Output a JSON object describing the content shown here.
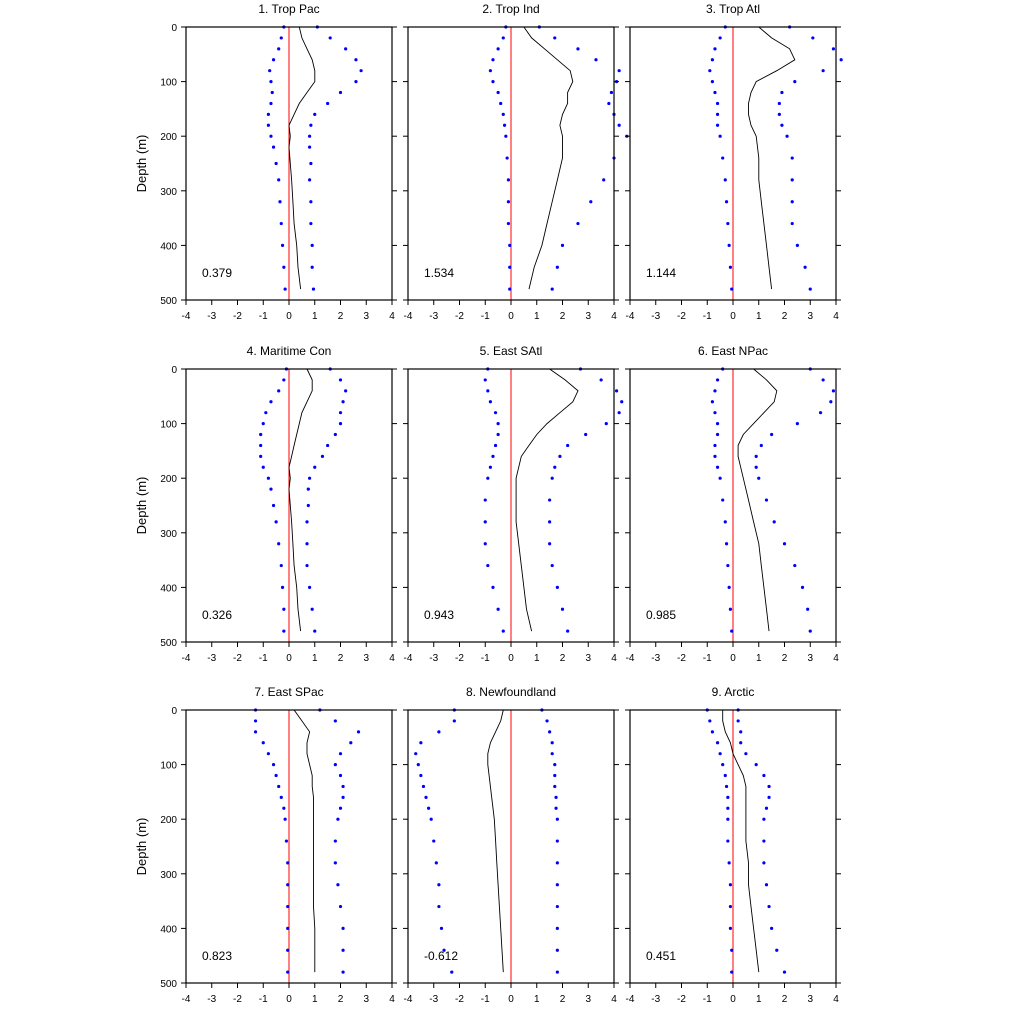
{
  "figure": {
    "ylabel": "Depth (m)",
    "colors": {
      "mean": "#000000",
      "bounds": "#0000ff",
      "zero": "#ff0000",
      "axes": "#000000"
    }
  },
  "chart_data": [
    {
      "type": "line",
      "title": "1. Trop Pac",
      "value_label": "0.379",
      "xlim": [
        -4,
        4
      ],
      "ylim": [
        0,
        500
      ],
      "y_inverted": true,
      "xticks": [
        "-4",
        "-3",
        "-2",
        "-1",
        "0",
        "1",
        "2",
        "3",
        "4"
      ],
      "yticks": [
        "0",
        "100",
        "200",
        "300",
        "400",
        "500"
      ],
      "depth": [
        0,
        20,
        40,
        60,
        80,
        100,
        120,
        140,
        160,
        180,
        200,
        220,
        250,
        280,
        320,
        360,
        400,
        440,
        480
      ],
      "series": [
        {
          "role": "mean",
          "values": [
            0.4,
            0.5,
            0.7,
            0.9,
            1.0,
            1.0,
            0.7,
            0.4,
            0.2,
            0.0,
            0.05,
            0.0,
            0.05,
            0.1,
            0.15,
            0.2,
            0.3,
            0.35,
            0.45
          ]
        },
        {
          "role": "upper",
          "values": [
            1.1,
            1.6,
            2.2,
            2.6,
            2.8,
            2.6,
            2.0,
            1.5,
            1.0,
            0.85,
            0.8,
            0.8,
            0.85,
            0.8,
            0.85,
            0.85,
            0.9,
            0.9,
            0.95
          ]
        },
        {
          "role": "lower",
          "values": [
            -0.2,
            -0.3,
            -0.4,
            -0.6,
            -0.75,
            -0.7,
            -0.65,
            -0.7,
            -0.8,
            -0.8,
            -0.7,
            -0.6,
            -0.5,
            -0.4,
            -0.35,
            -0.3,
            -0.25,
            -0.2,
            -0.15
          ]
        }
      ]
    },
    {
      "type": "line",
      "title": "2. Trop Ind",
      "value_label": "1.534",
      "xlim": [
        -4,
        4
      ],
      "ylim": [
        0,
        500
      ],
      "y_inverted": true,
      "xticks": [
        "-4",
        "-3",
        "-2",
        "-1",
        "0",
        "1",
        "2",
        "3",
        "4"
      ],
      "yticks": [
        "0",
        "100",
        "200",
        "300",
        "400",
        "500"
      ],
      "depth": [
        0,
        20,
        40,
        60,
        80,
        100,
        120,
        140,
        160,
        180,
        200,
        240,
        280,
        320,
        360,
        400,
        440,
        480
      ],
      "series": [
        {
          "role": "mean",
          "values": [
            0.5,
            0.8,
            1.3,
            1.8,
            2.3,
            2.4,
            2.2,
            2.2,
            2.0,
            1.9,
            2.0,
            2.0,
            1.8,
            1.6,
            1.4,
            1.2,
            0.9,
            0.7
          ]
        },
        {
          "role": "upper",
          "values": [
            1.1,
            1.7,
            2.6,
            3.3,
            4.2,
            4.1,
            3.9,
            3.8,
            4.0,
            4.2,
            4.5,
            4.0,
            3.6,
            3.1,
            2.6,
            2.0,
            1.8,
            1.6
          ]
        },
        {
          "role": "lower",
          "values": [
            -0.2,
            -0.3,
            -0.5,
            -0.7,
            -0.8,
            -0.7,
            -0.5,
            -0.4,
            -0.3,
            -0.25,
            -0.2,
            -0.15,
            -0.1,
            -0.1,
            -0.1,
            -0.05,
            -0.05,
            -0.05
          ]
        }
      ]
    },
    {
      "type": "line",
      "title": "3. Trop Atl",
      "value_label": "1.144",
      "xlim": [
        -4,
        4
      ],
      "ylim": [
        0,
        500
      ],
      "y_inverted": true,
      "xticks": [
        "-4",
        "-3",
        "-2",
        "-1",
        "0",
        "1",
        "2",
        "3",
        "4"
      ],
      "yticks": [
        "0",
        "100",
        "200",
        "300",
        "400",
        "500"
      ],
      "depth": [
        0,
        20,
        40,
        60,
        80,
        100,
        120,
        140,
        160,
        180,
        200,
        240,
        280,
        320,
        360,
        400,
        440,
        480
      ],
      "series": [
        {
          "role": "mean",
          "values": [
            1.0,
            1.5,
            2.2,
            2.4,
            1.7,
            0.9,
            0.7,
            0.6,
            0.6,
            0.7,
            0.9,
            1.0,
            1.0,
            1.1,
            1.2,
            1.3,
            1.4,
            1.5
          ]
        },
        {
          "role": "upper",
          "values": [
            2.2,
            3.1,
            3.9,
            4.2,
            3.5,
            2.4,
            1.9,
            1.8,
            1.8,
            1.9,
            2.1,
            2.3,
            2.3,
            2.3,
            2.3,
            2.5,
            2.8,
            3.0
          ]
        },
        {
          "role": "lower",
          "values": [
            -0.3,
            -0.5,
            -0.7,
            -0.8,
            -0.9,
            -0.8,
            -0.7,
            -0.6,
            -0.6,
            -0.6,
            -0.5,
            -0.4,
            -0.3,
            -0.25,
            -0.2,
            -0.15,
            -0.1,
            -0.05
          ]
        }
      ]
    },
    {
      "type": "line",
      "title": "4. Maritime Con",
      "value_label": "0.326",
      "xlim": [
        -4,
        4
      ],
      "ylim": [
        0,
        500
      ],
      "y_inverted": true,
      "xticks": [
        "-4",
        "-3",
        "-2",
        "-1",
        "0",
        "1",
        "2",
        "3",
        "4"
      ],
      "yticks": [
        "0",
        "100",
        "200",
        "300",
        "400",
        "500"
      ],
      "depth": [
        0,
        20,
        40,
        60,
        80,
        100,
        120,
        140,
        160,
        180,
        200,
        220,
        250,
        280,
        320,
        360,
        400,
        440,
        480
      ],
      "series": [
        {
          "role": "mean",
          "values": [
            0.7,
            0.9,
            0.9,
            0.7,
            0.5,
            0.4,
            0.3,
            0.2,
            0.1,
            0.0,
            0.05,
            0.0,
            0.05,
            0.1,
            0.15,
            0.2,
            0.3,
            0.35,
            0.45
          ]
        },
        {
          "role": "upper",
          "values": [
            1.6,
            2.0,
            2.2,
            2.1,
            2.0,
            2.0,
            1.8,
            1.5,
            1.3,
            1.0,
            0.8,
            0.75,
            0.75,
            0.7,
            0.7,
            0.7,
            0.8,
            0.9,
            1.0
          ]
        },
        {
          "role": "lower",
          "values": [
            -0.1,
            -0.2,
            -0.4,
            -0.7,
            -0.9,
            -1.0,
            -1.1,
            -1.1,
            -1.1,
            -1.0,
            -0.8,
            -0.7,
            -0.6,
            -0.5,
            -0.4,
            -0.3,
            -0.25,
            -0.2,
            -0.2
          ]
        }
      ]
    },
    {
      "type": "line",
      "title": "5. East SAtl",
      "value_label": "0.943",
      "xlim": [
        -4,
        4
      ],
      "ylim": [
        0,
        500
      ],
      "y_inverted": true,
      "xticks": [
        "-4",
        "-3",
        "-2",
        "-1",
        "0",
        "1",
        "2",
        "3",
        "4"
      ],
      "yticks": [
        "0",
        "100",
        "200",
        "300",
        "400",
        "500"
      ],
      "depth": [
        0,
        20,
        40,
        60,
        80,
        100,
        120,
        140,
        160,
        180,
        200,
        240,
        280,
        320,
        360,
        400,
        440,
        480
      ],
      "series": [
        {
          "role": "mean",
          "values": [
            1.5,
            2.1,
            2.6,
            2.4,
            1.9,
            1.4,
            1.0,
            0.7,
            0.4,
            0.3,
            0.2,
            0.2,
            0.2,
            0.3,
            0.4,
            0.5,
            0.6,
            0.8
          ]
        },
        {
          "role": "upper",
          "values": [
            2.7,
            3.5,
            4.1,
            4.3,
            4.2,
            3.7,
            2.9,
            2.2,
            1.9,
            1.7,
            1.6,
            1.5,
            1.5,
            1.5,
            1.6,
            1.8,
            2.0,
            2.2
          ]
        },
        {
          "role": "lower",
          "values": [
            -0.9,
            -1.0,
            -0.9,
            -0.8,
            -0.6,
            -0.5,
            -0.5,
            -0.6,
            -0.7,
            -0.8,
            -0.9,
            -1.0,
            -1.0,
            -1.0,
            -0.9,
            -0.7,
            -0.5,
            -0.3
          ]
        }
      ]
    },
    {
      "type": "line",
      "title": "6. East NPac",
      "value_label": "0.985",
      "xlim": [
        -4,
        4
      ],
      "ylim": [
        0,
        500
      ],
      "y_inverted": true,
      "xticks": [
        "-4",
        "-3",
        "-2",
        "-1",
        "0",
        "1",
        "2",
        "3",
        "4"
      ],
      "yticks": [
        "0",
        "100",
        "200",
        "300",
        "400",
        "500"
      ],
      "depth": [
        0,
        20,
        40,
        60,
        80,
        100,
        120,
        140,
        160,
        180,
        200,
        240,
        280,
        320,
        360,
        400,
        440,
        480
      ],
      "series": [
        {
          "role": "mean",
          "values": [
            0.8,
            1.3,
            1.7,
            1.6,
            1.2,
            0.8,
            0.4,
            0.2,
            0.2,
            0.3,
            0.4,
            0.6,
            0.8,
            1.0,
            1.1,
            1.2,
            1.3,
            1.4
          ]
        },
        {
          "role": "upper",
          "values": [
            3.0,
            3.5,
            3.9,
            3.8,
            3.4,
            2.5,
            1.5,
            1.1,
            0.9,
            0.9,
            1.0,
            1.3,
            1.6,
            2.0,
            2.4,
            2.7,
            2.9,
            3.0
          ]
        },
        {
          "role": "lower",
          "values": [
            -0.4,
            -0.6,
            -0.7,
            -0.8,
            -0.7,
            -0.6,
            -0.6,
            -0.7,
            -0.7,
            -0.6,
            -0.5,
            -0.4,
            -0.3,
            -0.25,
            -0.2,
            -0.15,
            -0.1,
            -0.05
          ]
        }
      ]
    },
    {
      "type": "line",
      "title": "7. East SPac",
      "value_label": "0.823",
      "xlim": [
        -4,
        4
      ],
      "ylim": [
        0,
        500
      ],
      "y_inverted": true,
      "xticks": [
        "-4",
        "-3",
        "-2",
        "-1",
        "0",
        "1",
        "2",
        "3",
        "4"
      ],
      "yticks": [
        "0",
        "100",
        "200",
        "300",
        "400",
        "500"
      ],
      "depth": [
        0,
        20,
        40,
        60,
        80,
        100,
        120,
        140,
        160,
        180,
        200,
        240,
        280,
        320,
        360,
        400,
        440,
        480
      ],
      "series": [
        {
          "role": "mean",
          "values": [
            0.2,
            0.5,
            0.8,
            0.7,
            0.7,
            0.8,
            0.9,
            0.9,
            0.95,
            0.95,
            0.95,
            0.95,
            0.95,
            0.95,
            0.95,
            1.0,
            1.0,
            1.0
          ]
        },
        {
          "role": "upper",
          "values": [
            1.2,
            1.8,
            2.7,
            2.4,
            2.0,
            1.8,
            2.0,
            2.1,
            2.1,
            2.0,
            1.9,
            1.8,
            1.8,
            1.9,
            2.0,
            2.1,
            2.1,
            2.1
          ]
        },
        {
          "role": "lower",
          "values": [
            -1.3,
            -1.3,
            -1.3,
            -1.0,
            -0.8,
            -0.6,
            -0.5,
            -0.4,
            -0.3,
            -0.2,
            -0.15,
            -0.1,
            -0.05,
            -0.05,
            -0.05,
            -0.05,
            -0.05,
            -0.05
          ]
        }
      ]
    },
    {
      "type": "line",
      "title": "8. Newfoundland",
      "value_label": "-0.612",
      "xlim": [
        -4,
        4
      ],
      "ylim": [
        0,
        500
      ],
      "y_inverted": true,
      "xticks": [
        "-4",
        "-3",
        "-2",
        "-1",
        "0",
        "1",
        "2",
        "3",
        "4"
      ],
      "yticks": [
        "0",
        "100",
        "200",
        "300",
        "400",
        "500"
      ],
      "depth": [
        0,
        20,
        40,
        60,
        80,
        100,
        120,
        140,
        160,
        180,
        200,
        240,
        280,
        320,
        360,
        400,
        440,
        480
      ],
      "series": [
        {
          "role": "mean",
          "values": [
            -0.3,
            -0.4,
            -0.6,
            -0.8,
            -0.9,
            -0.9,
            -0.85,
            -0.8,
            -0.75,
            -0.7,
            -0.65,
            -0.6,
            -0.55,
            -0.5,
            -0.45,
            -0.4,
            -0.35,
            -0.3
          ]
        },
        {
          "role": "upper",
          "values": [
            1.2,
            1.4,
            1.5,
            1.6,
            1.6,
            1.7,
            1.7,
            1.7,
            1.75,
            1.75,
            1.8,
            1.8,
            1.8,
            1.8,
            1.8,
            1.8,
            1.8,
            1.8
          ]
        },
        {
          "role": "lower",
          "values": [
            -2.2,
            -2.2,
            -2.8,
            -3.5,
            -3.7,
            -3.6,
            -3.5,
            -3.4,
            -3.3,
            -3.2,
            -3.1,
            -3.0,
            -2.9,
            -2.8,
            -2.8,
            -2.7,
            -2.6,
            -2.3
          ]
        }
      ]
    },
    {
      "type": "line",
      "title": "9. Arctic",
      "value_label": "0.451",
      "xlim": [
        -4,
        4
      ],
      "ylim": [
        0,
        500
      ],
      "y_inverted": true,
      "xticks": [
        "-4",
        "-3",
        "-2",
        "-1",
        "0",
        "1",
        "2",
        "3",
        "4"
      ],
      "yticks": [
        "0",
        "100",
        "200",
        "300",
        "400",
        "500"
      ],
      "depth": [
        0,
        20,
        40,
        60,
        80,
        100,
        120,
        140,
        160,
        180,
        200,
        240,
        280,
        320,
        360,
        400,
        440,
        480
      ],
      "series": [
        {
          "role": "mean",
          "values": [
            -0.4,
            -0.4,
            -0.3,
            -0.1,
            0.0,
            0.2,
            0.4,
            0.5,
            0.5,
            0.5,
            0.5,
            0.5,
            0.6,
            0.6,
            0.7,
            0.8,
            0.9,
            1.0
          ]
        },
        {
          "role": "upper",
          "values": [
            0.2,
            0.2,
            0.3,
            0.3,
            0.5,
            0.9,
            1.2,
            1.4,
            1.4,
            1.3,
            1.2,
            1.2,
            1.2,
            1.3,
            1.4,
            1.5,
            1.7,
            2.0
          ]
        },
        {
          "role": "lower",
          "values": [
            -1.0,
            -0.9,
            -0.8,
            -0.6,
            -0.5,
            -0.4,
            -0.3,
            -0.25,
            -0.2,
            -0.2,
            -0.2,
            -0.2,
            -0.15,
            -0.1,
            -0.1,
            -0.1,
            -0.05,
            -0.05
          ]
        }
      ]
    }
  ]
}
